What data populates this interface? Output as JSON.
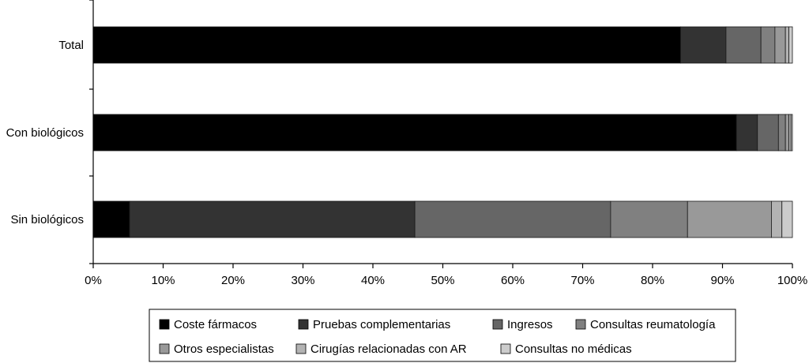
{
  "chart_data": {
    "type": "bar",
    "orientation": "horizontal",
    "stacked": true,
    "categories": [
      "Total",
      "Con biológicos",
      "Sin biológicos"
    ],
    "x_ticks": [
      "0%",
      "10%",
      "20%",
      "30%",
      "40%",
      "50%",
      "60%",
      "70%",
      "80%",
      "90%",
      "100%"
    ],
    "xlim": [
      0,
      100
    ],
    "grid": false,
    "legend_position": "bottom",
    "series": [
      {
        "name": "Coste fármacos",
        "color": "#000000",
        "values": [
          84,
          92,
          5.2
        ]
      },
      {
        "name": "Pruebas complementarias",
        "color": "#333333",
        "values": [
          6.5,
          3,
          40.8
        ]
      },
      {
        "name": "Ingresos",
        "color": "#666666",
        "values": [
          5,
          3,
          28
        ]
      },
      {
        "name": "Consultas reumatología",
        "color": "#808080",
        "values": [
          2,
          1,
          11
        ]
      },
      {
        "name": "Otros especialistas",
        "color": "#999999",
        "values": [
          1.5,
          0.5,
          12
        ]
      },
      {
        "name": "Cirugías relacionadas con AR",
        "color": "#b3b3b3",
        "values": [
          0.5,
          0.3,
          1.5
        ]
      },
      {
        "name": "Consultas no médicas",
        "color": "#cccccc",
        "values": [
          0.5,
          0.2,
          1.5
        ]
      }
    ]
  }
}
